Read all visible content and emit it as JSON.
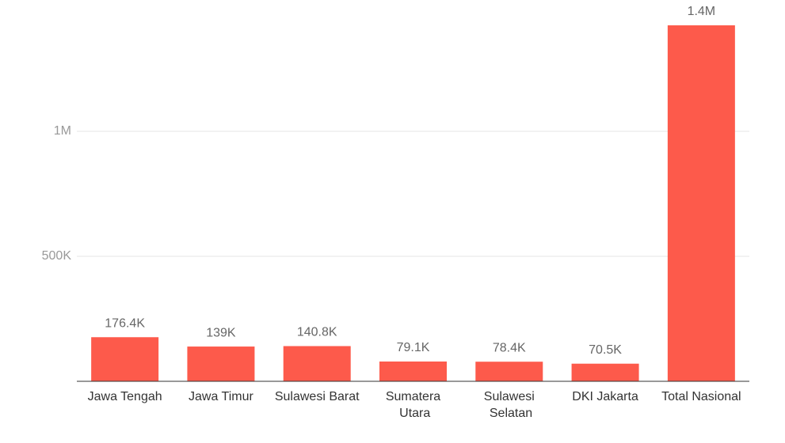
{
  "chart_data": {
    "type": "bar",
    "categories": [
      "Jawa Tengah",
      "Jawa Timur",
      "Sulawesi Barat",
      "Sumatera Utara",
      "Sulawesi Selatan",
      "DKI Jakarta",
      "Total Nasional"
    ],
    "values": [
      176400,
      139000,
      140800,
      79100,
      78400,
      70500,
      1424000
    ],
    "value_labels": [
      "176.4K",
      "139K",
      "140.8K",
      "79.1K",
      "78.4K",
      "70.5K",
      "1.4M"
    ],
    "color": "#fd5a4b",
    "ylim": [
      0,
      1500000
    ],
    "yticks": [
      {
        "value": 500000,
        "label": "500K"
      },
      {
        "value": 1000000,
        "label": "1M"
      }
    ],
    "grid": true
  }
}
